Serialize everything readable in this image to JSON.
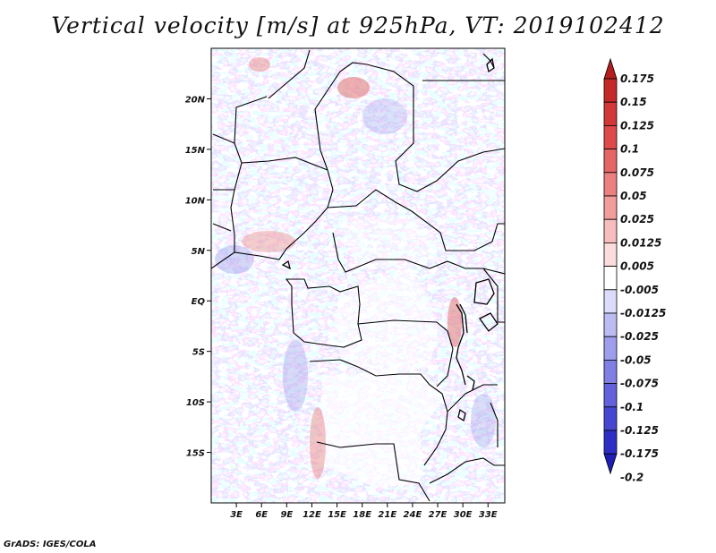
{
  "chart_data": {
    "type": "heatmap",
    "title": "Vertical velocity [m/s] at 925hPa, VT: 2019102412",
    "variable": "Vertical velocity",
    "units": "m/s",
    "level": "925hPa",
    "valid_time": "2019102412",
    "x_axis": {
      "label": "",
      "range": [
        0,
        35
      ],
      "ticks": [
        3,
        6,
        9,
        12,
        15,
        18,
        21,
        24,
        27,
        30,
        33
      ],
      "tick_labels": [
        "3E",
        "6E",
        "9E",
        "12E",
        "15E",
        "18E",
        "21E",
        "24E",
        "27E",
        "30E",
        "33E"
      ]
    },
    "y_axis": {
      "label": "",
      "range": [
        -20,
        25
      ],
      "ticks": [
        20,
        15,
        10,
        5,
        0,
        -5,
        -10,
        -15
      ],
      "tick_labels": [
        "20N",
        "15N",
        "10N",
        "5N",
        "EQ",
        "5S",
        "10S",
        "15S"
      ]
    },
    "colorbar": {
      "orientation": "vertical",
      "levels": [
        "0.175",
        "0.15",
        "0.125",
        "0.1",
        "0.075",
        "0.05",
        "0.025",
        "0.0125",
        "0.005",
        "-0.005",
        "-0.0125",
        "-0.025",
        "-0.05",
        "-0.075",
        "-0.1",
        "-0.125",
        "-0.175",
        "-0.2"
      ],
      "colors": [
        "#b41e1e",
        "#c42a2a",
        "#d23838",
        "#de4a4a",
        "#e66565",
        "#ec8080",
        "#f29c9c",
        "#f7bcbc",
        "#fbdcdc",
        "#ffffff",
        "#dcdcfa",
        "#bcbcf3",
        "#9e9eec",
        "#7f7fe4",
        "#6262dc",
        "#4646d2",
        "#2e2ec6",
        "#1e1eb4"
      ]
    },
    "field_summary": "Fine-scale mixed positive (red) and negative (blue) vertical velocity over Central Africa; strongest ascent near coastlines and highlands, near-zero (white) over much of southern and central interior."
  },
  "footer": "GrADS: IGES/COLA"
}
